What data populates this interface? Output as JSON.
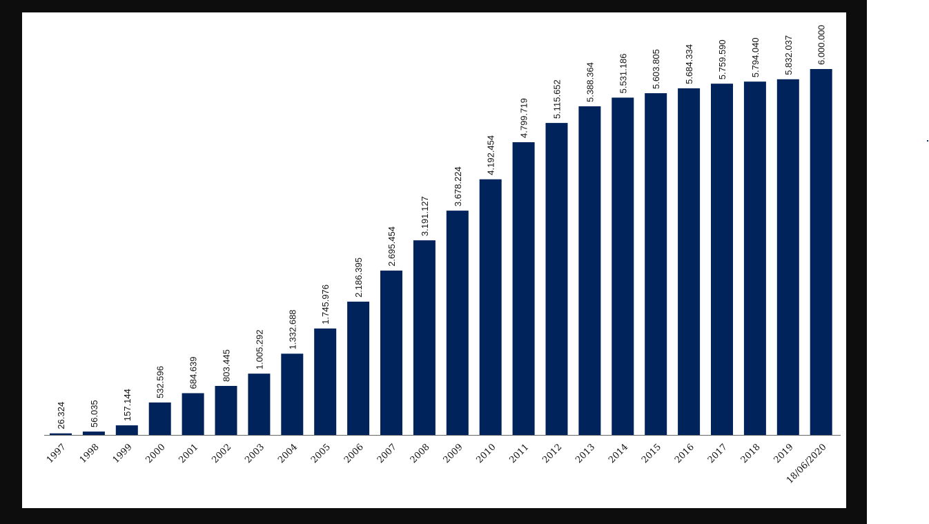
{
  "chart_data": {
    "type": "bar",
    "categories": [
      "1997",
      "1998",
      "1999",
      "2000",
      "2001",
      "2002",
      "2003",
      "2004",
      "2005",
      "2006",
      "2007",
      "2008",
      "2009",
      "2010",
      "2011",
      "2012",
      "2013",
      "2014",
      "2015",
      "2016",
      "2017",
      "2018",
      "2019",
      "18/06/2020"
    ],
    "values": [
      26324,
      56035,
      157144,
      532596,
      684639,
      803445,
      1005292,
      1332688,
      1745976,
      2186395,
      2695454,
      3191127,
      3678224,
      4192454,
      4799719,
      5115652,
      5388364,
      5531186,
      5603805,
      5684334,
      5759590,
      5794040,
      5832037,
      6000000
    ],
    "value_labels": [
      "26.324",
      "56.035",
      "157.144",
      "532.596",
      "684.639",
      "803.445",
      "1.005.292",
      "1.332.688",
      "1.745.976",
      "2.186.395",
      "2.695.454",
      "3.191.127",
      "3.678.224",
      "4.192.454",
      "4.799.719",
      "5.115.652",
      "5.388.364",
      "5.531.186",
      "5.603.805",
      "5.684.334",
      "5.759.590",
      "5.794.040",
      "5.832.037",
      "6.000.000"
    ],
    "title": "",
    "xlabel": "",
    "ylabel": "",
    "ylim": [
      0,
      6000000
    ],
    "grid": false,
    "legend": "none",
    "bar_color": "#00235b",
    "axis_color": "#666666"
  }
}
